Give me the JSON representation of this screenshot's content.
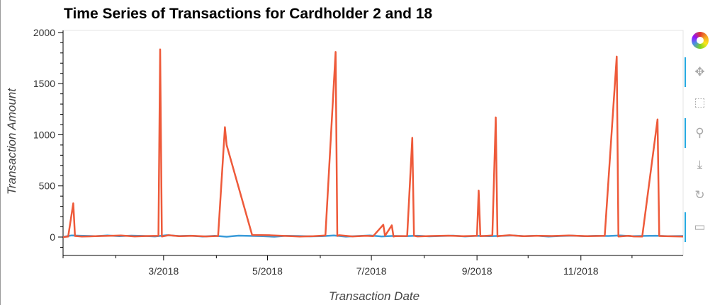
{
  "title": "Time Series of Transactions for Cardholder 2 and 18",
  "toolbar": {
    "items": [
      {
        "name": "bokeh-logo-icon",
        "glyph": ""
      },
      {
        "name": "pan-icon",
        "glyph": "✥"
      },
      {
        "name": "box-zoom-icon",
        "glyph": "⬚"
      },
      {
        "name": "wheel-zoom-icon",
        "glyph": "⚲"
      },
      {
        "name": "save-icon",
        "glyph": "⤓"
      },
      {
        "name": "reset-icon",
        "glyph": "↻"
      },
      {
        "name": "hover-icon",
        "glyph": "▭"
      }
    ]
  },
  "chart_data": {
    "type": "line",
    "title": "Time Series of Transactions for Cardholder 2 and 18",
    "xlabel": "Transaction Date",
    "ylabel": "Transaction Amount",
    "xlim": [
      "2018-01-01",
      "2018-12-31"
    ],
    "ylim": [
      -180,
      2020
    ],
    "x_ticks": [
      "2018-03-01",
      "2018-05-01",
      "2018-07-01",
      "2018-09-01",
      "2018-11-01"
    ],
    "x_tick_labels": [
      "3/2018",
      "5/2018",
      "7/2018",
      "9/2018",
      "11/2018"
    ],
    "y_ticks": [
      0,
      500,
      1000,
      1500,
      2000
    ],
    "y_tick_labels": [
      "0",
      "500",
      "1000",
      "1500",
      "2000"
    ],
    "grid": false,
    "series": [
      {
        "color": "#3a9bd9",
        "x": [
          "2018-01-01",
          "2018-01-06",
          "2018-01-13",
          "2018-01-20",
          "2018-01-27",
          "2018-02-03",
          "2018-02-10",
          "2018-02-17",
          "2018-02-24",
          "2018-03-03",
          "2018-03-10",
          "2018-03-17",
          "2018-03-24",
          "2018-03-31",
          "2018-04-07",
          "2018-04-14",
          "2018-04-21",
          "2018-04-28",
          "2018-05-05",
          "2018-05-12",
          "2018-05-19",
          "2018-05-26",
          "2018-06-02",
          "2018-06-09",
          "2018-06-16",
          "2018-06-23",
          "2018-06-30",
          "2018-07-07",
          "2018-07-14",
          "2018-07-21",
          "2018-07-28",
          "2018-08-04",
          "2018-08-11",
          "2018-08-18",
          "2018-08-25",
          "2018-09-01",
          "2018-09-08",
          "2018-09-15",
          "2018-09-22",
          "2018-09-29",
          "2018-10-06",
          "2018-10-13",
          "2018-10-20",
          "2018-10-27",
          "2018-11-03",
          "2018-11-10",
          "2018-11-17",
          "2018-11-24",
          "2018-12-01",
          "2018-12-08",
          "2018-12-15",
          "2018-12-22",
          "2018-12-31"
        ],
        "values": [
          2,
          16,
          12,
          9,
          15,
          8,
          14,
          11,
          6,
          18,
          10,
          13,
          5,
          12,
          3,
          14,
          11,
          8,
          3,
          12,
          10,
          7,
          9,
          16,
          4,
          10,
          15,
          6,
          11,
          9,
          13,
          7,
          10,
          14,
          6,
          12,
          8,
          11,
          15,
          9,
          13,
          5,
          10,
          14,
          8,
          12,
          10,
          16,
          9,
          11,
          13,
          8,
          10
        ]
      },
      {
        "color": "#ee5a3a",
        "x": [
          "2018-01-01",
          "2018-01-04",
          "2018-01-07",
          "2018-01-08",
          "2018-01-12",
          "2018-01-20",
          "2018-01-28",
          "2018-02-04",
          "2018-02-12",
          "2018-02-20",
          "2018-02-26",
          "2018-02-27",
          "2018-02-28",
          "2018-03-04",
          "2018-03-10",
          "2018-03-18",
          "2018-03-26",
          "2018-04-02",
          "2018-04-06",
          "2018-04-07",
          "2018-04-22",
          "2018-05-02",
          "2018-05-10",
          "2018-05-20",
          "2018-05-28",
          "2018-06-04",
          "2018-06-10",
          "2018-06-11",
          "2018-06-12",
          "2018-06-20",
          "2018-06-28",
          "2018-07-02",
          "2018-07-08",
          "2018-07-09",
          "2018-07-13",
          "2018-07-14",
          "2018-07-15",
          "2018-07-22",
          "2018-07-25",
          "2018-07-26",
          "2018-07-28",
          "2018-08-05",
          "2018-08-15",
          "2018-08-24",
          "2018-09-01",
          "2018-09-02",
          "2018-09-03",
          "2018-09-10",
          "2018-09-12",
          "2018-09-13",
          "2018-09-14",
          "2018-09-20",
          "2018-09-28",
          "2018-10-06",
          "2018-10-15",
          "2018-10-25",
          "2018-11-05",
          "2018-11-15",
          "2018-11-22",
          "2018-11-23",
          "2018-11-26",
          "2018-11-29",
          "2018-12-02",
          "2018-12-07",
          "2018-12-16",
          "2018-12-17",
          "2018-12-20",
          "2018-12-31"
        ],
        "values": [
          0,
          5,
          330,
          10,
          5,
          8,
          12,
          15,
          6,
          10,
          12,
          1835,
          5,
          18,
          8,
          12,
          6,
          10,
          1075,
          900,
          20,
          18,
          12,
          5,
          8,
          15,
          1810,
          10,
          18,
          6,
          12,
          8,
          120,
          12,
          115,
          5,
          8,
          10,
          970,
          12,
          6,
          10,
          14,
          8,
          12,
          455,
          8,
          15,
          1170,
          6,
          10,
          18,
          8,
          12,
          10,
          15,
          8,
          12,
          1765,
          5,
          8,
          12,
          6,
          5,
          1150,
          10,
          8,
          5
        ]
      }
    ]
  }
}
